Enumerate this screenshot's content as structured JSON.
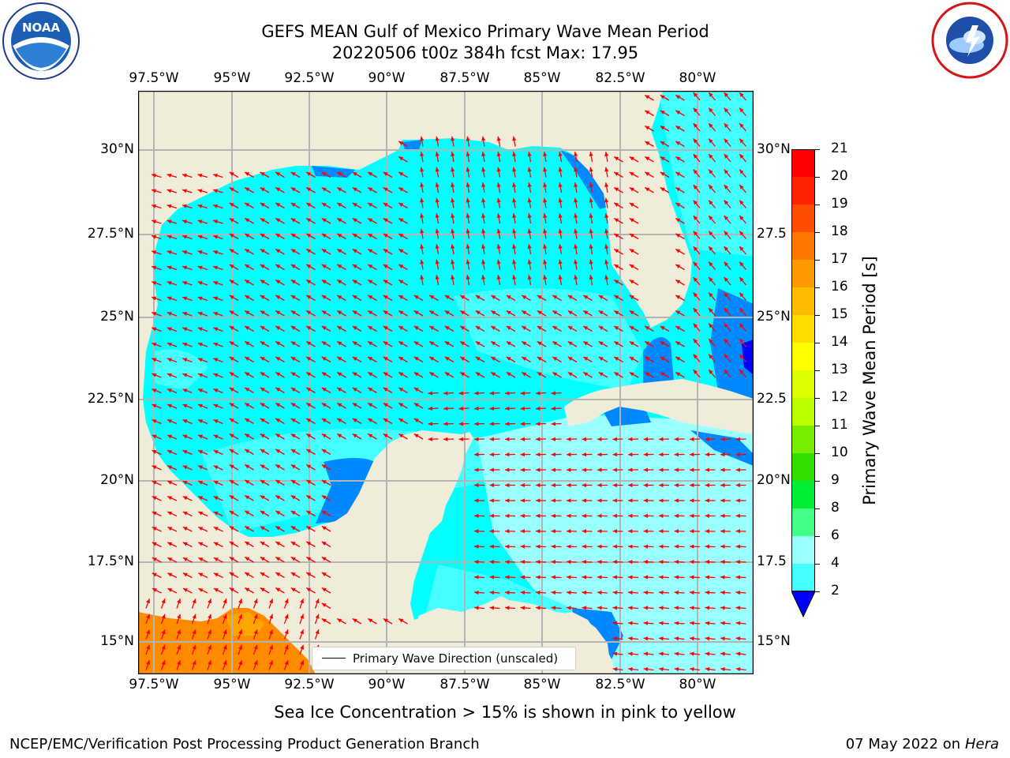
{
  "header": {
    "title_line1": "GEFS MEAN Gulf of Mexico Primary Wave Mean Period",
    "title_line2": "20220506 t00z 384h fcst   Max: 17.95"
  },
  "logos": {
    "left": "NOAA logo",
    "right": "National Weather Service logo"
  },
  "axes": {
    "lon_labels": [
      "97.5°W",
      "95°W",
      "92.5°W",
      "90°W",
      "87.5°W",
      "85°W",
      "82.5°W",
      "80°W"
    ],
    "lat_labels": [
      "30°N",
      "27.5°N",
      "25°N",
      "22.5°N",
      "20°N",
      "17.5°N",
      "15°N"
    ],
    "lat_labels_right": [
      "30°N",
      "27.5",
      "25°N",
      "22.5",
      "20°N",
      "17.5",
      "15°N"
    ]
  },
  "legend": {
    "label": "Primary Wave Direction (unscaled)"
  },
  "colorbar": {
    "label": "Primary Wave Mean Period [s]",
    "ticks": [
      "21",
      "20",
      "19",
      "18",
      "17",
      "16",
      "15",
      "14",
      "13",
      "12",
      "11",
      "10",
      "9",
      "8",
      "6",
      "4",
      "2"
    ],
    "colors": [
      "#ff0000",
      "#ff2200",
      "#ff4d00",
      "#ff7700",
      "#ff9900",
      "#ffbb00",
      "#ffdd00",
      "#ffff00",
      "#ddff00",
      "#bbff00",
      "#77ee00",
      "#33dd00",
      "#00ee33",
      "#44ff88",
      "#99ffff",
      "#44ffff",
      "#00ffff",
      "#0088ff"
    ],
    "extend_color": "#0000ff"
  },
  "colors": {
    "land": "#efedd9",
    "sea_8": "#99ffff",
    "sea_6": "#44ffff",
    "sea_4": "#00ffff",
    "sea_2": "#0088ff",
    "sea_under": "#0000ff",
    "high_period": "#ff8c00",
    "arrow": "#ff0000",
    "grid": "#b4b4b4"
  },
  "footer": {
    "note": "Sea Ice Concentration > 15% is shown in pink to yellow",
    "branch": "NCEP/EMC/Verification Post Processing Product Generation Branch",
    "date": "07 May 2022 on",
    "machine": "Hera"
  }
}
